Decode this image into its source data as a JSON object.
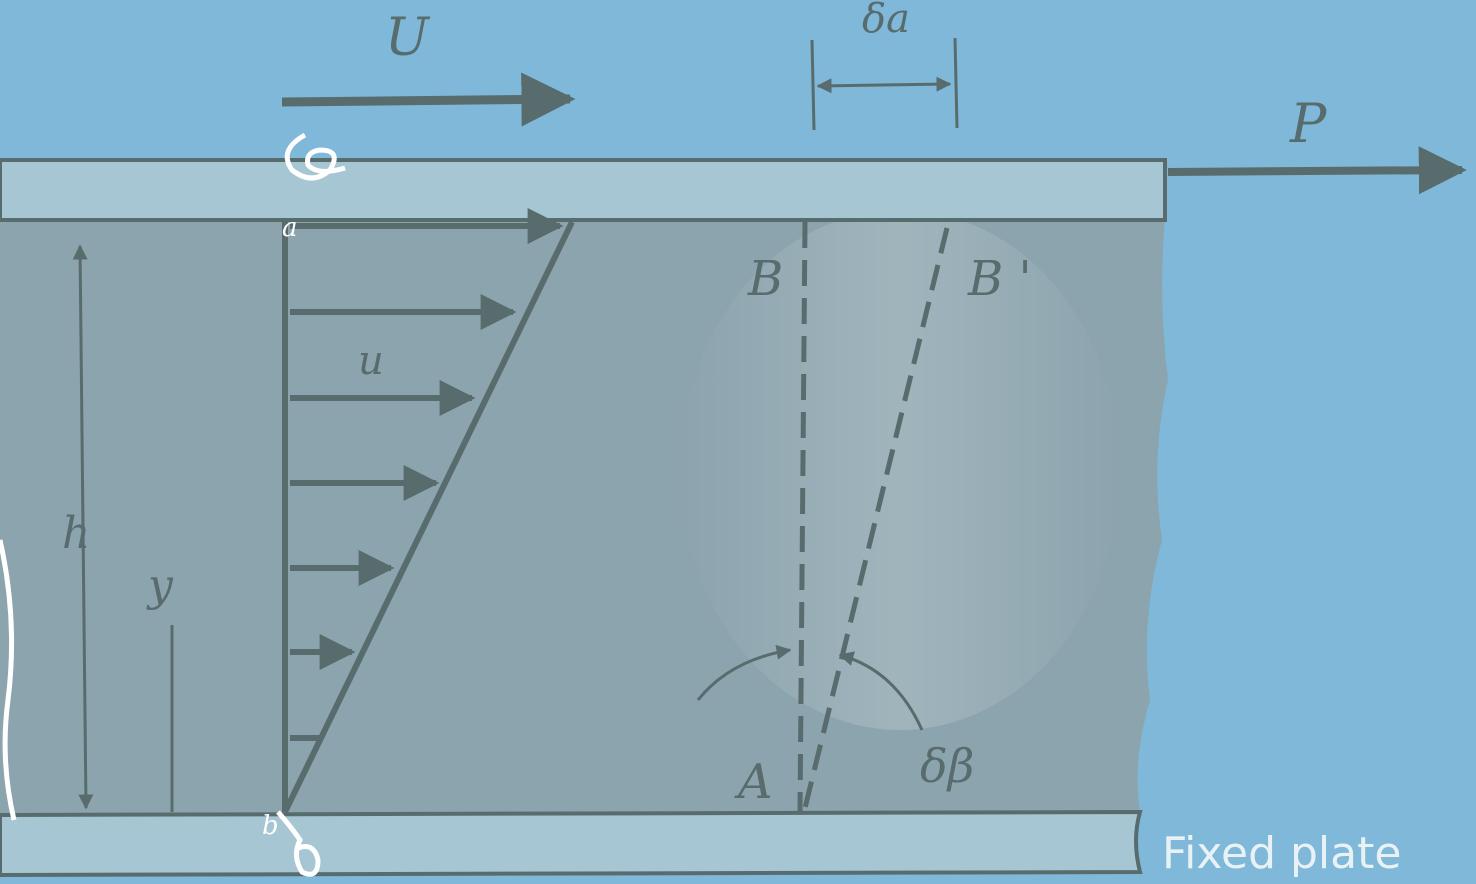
{
  "labels": {
    "plate_velocity": "U",
    "displacement": "δa",
    "force": "P",
    "point_b": "B",
    "point_b_prime": "B '",
    "local_velocity": "u",
    "height": "h",
    "coordinate": "y",
    "point_a": "A",
    "angle": "δβ",
    "fixed_plate": "Fixed plate"
  },
  "annotations": {
    "top_mark": "a",
    "bottom_mark": "b"
  },
  "colors": {
    "background": "#7fb8d8",
    "fluid": "#8ca4ae",
    "plate": "#a7c6d4",
    "line": "#586c6e",
    "annotation": "#ffffff"
  }
}
